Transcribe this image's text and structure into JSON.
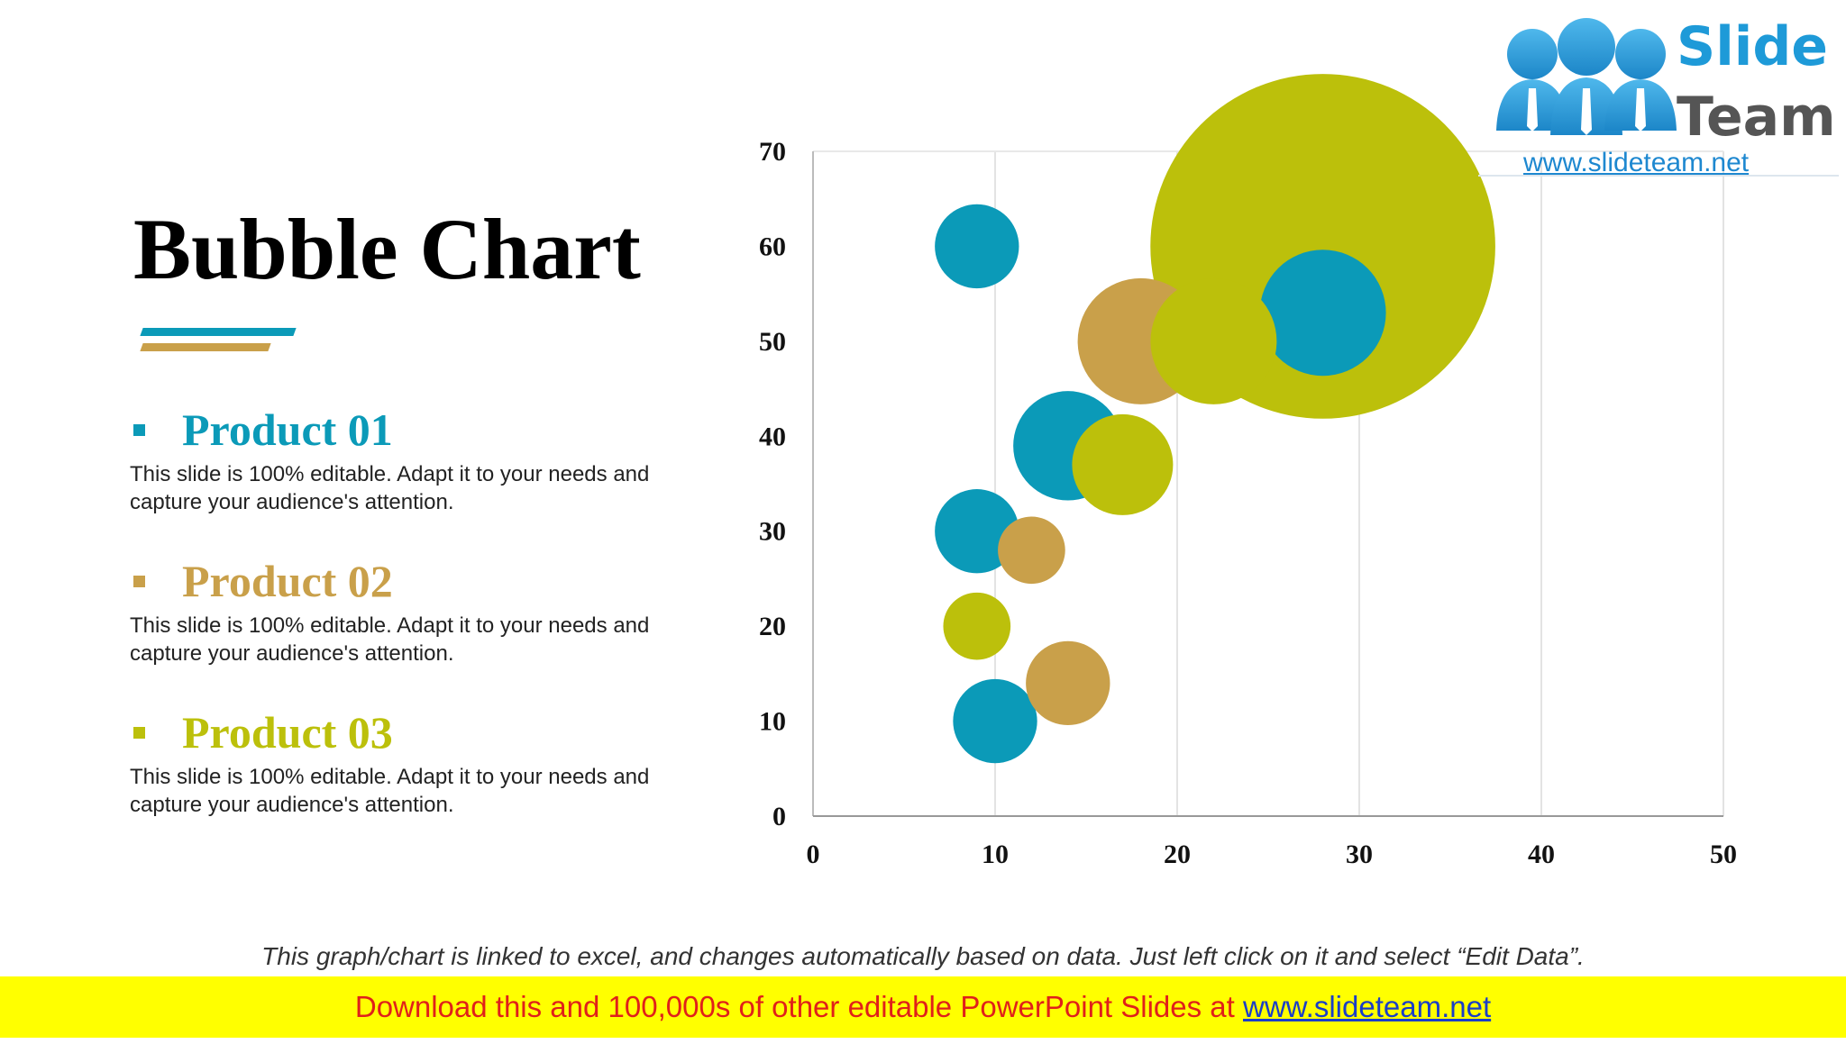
{
  "title": "Bubble Chart",
  "products": [
    {
      "name": "Product 01",
      "description": "This slide is 100% editable. Adapt it to your needs and capture your audience's attention.",
      "color": "#0b9ab8"
    },
    {
      "name": "Product 02",
      "description": "This slide is 100% editable. Adapt it to your needs and capture your audience's attention.",
      "color": "#c9a04a"
    },
    {
      "name": "Product 03",
      "description": "This slide is 100% editable. Adapt it to your needs and capture your audience's attention.",
      "color": "#bcc00b"
    }
  ],
  "logo": {
    "word1": "Slide",
    "word2": "Team",
    "url": "www.slideteam.net",
    "icon": "three-people-icon",
    "colors": {
      "blue": "#1e9ad8",
      "gray": "#555555"
    }
  },
  "footnote": "This graph/chart is linked to excel, and changes automatically based on data. Just left click on it and select “Edit Data”.",
  "banner": {
    "text": "Download this and 100,000s of other editable PowerPoint Slides at ",
    "link": "www.slideteam.net"
  },
  "chart_data": {
    "type": "bubble",
    "title": "",
    "xlabel": "",
    "ylabel": "",
    "xlim": [
      0,
      50
    ],
    "ylim": [
      0,
      70
    ],
    "x_ticks": [
      0,
      10,
      20,
      30,
      40,
      50
    ],
    "y_ticks": [
      0,
      10,
      20,
      30,
      40,
      50,
      60,
      70
    ],
    "grid": "vertical",
    "series": [
      {
        "name": "Product 01",
        "color": "#0b9ab8",
        "points": [
          {
            "x": 9,
            "y": 60,
            "size": 10
          },
          {
            "x": 14,
            "y": 39,
            "size": 13
          },
          {
            "x": 9,
            "y": 30,
            "size": 10
          },
          {
            "x": 10,
            "y": 10,
            "size": 10
          },
          {
            "x": 28,
            "y": 53,
            "size": 15
          }
        ]
      },
      {
        "name": "Product 02",
        "color": "#c9a04a",
        "points": [
          {
            "x": 18,
            "y": 50,
            "size": 15
          },
          {
            "x": 12,
            "y": 28,
            "size": 8
          },
          {
            "x": 14,
            "y": 14,
            "size": 10
          }
        ]
      },
      {
        "name": "Product 03",
        "color": "#bcc00b",
        "points": [
          {
            "x": 28,
            "y": 60,
            "size": 41
          },
          {
            "x": 22,
            "y": 50,
            "size": 15
          },
          {
            "x": 17,
            "y": 37,
            "size": 12
          },
          {
            "x": 9,
            "y": 20,
            "size": 8
          }
        ]
      }
    ]
  }
}
